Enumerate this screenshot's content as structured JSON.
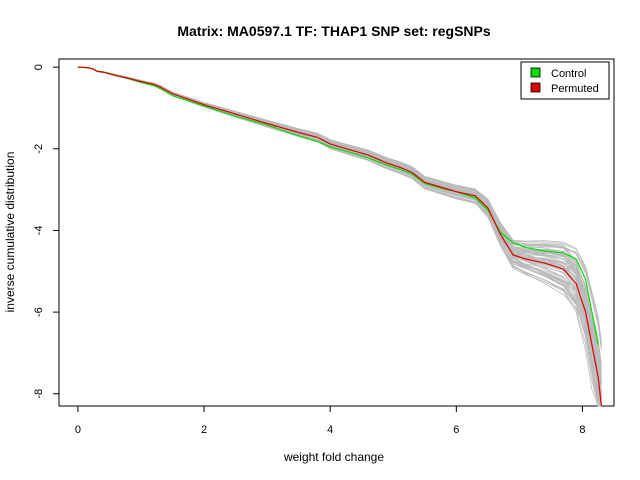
{
  "chart_data": {
    "type": "line",
    "title": "Matrix: MA0597.1 TF: THAP1 SNP set: regSNPs",
    "xlabel": "weight fold change",
    "ylabel": "inverse cumulative distribution",
    "xlim": [
      -0.3,
      8.5
    ],
    "ylim": [
      -8.3,
      0.2
    ],
    "x_ticks": [
      0,
      2,
      4,
      6,
      8
    ],
    "y_ticks": [
      0,
      -2,
      -4,
      -6,
      -8
    ],
    "x_tick_labels": [
      "0",
      "2",
      "4",
      "6",
      "8"
    ],
    "y_tick_labels": [
      "0",
      "-2",
      "-4",
      "-6",
      "-8"
    ],
    "grid": false,
    "legend": {
      "position": "top-right",
      "entries": [
        "Control",
        "Permuted"
      ]
    },
    "series": [
      {
        "name": "Control",
        "color": "#00dd00",
        "x": [
          0.0,
          0.15,
          0.25,
          0.3,
          0.4,
          0.6,
          0.8,
          1.0,
          1.2,
          1.3,
          1.5,
          2.0,
          2.5,
          3.0,
          3.5,
          3.8,
          4.0,
          4.3,
          4.6,
          4.9,
          5.1,
          5.3,
          5.5,
          5.8,
          6.0,
          6.3,
          6.5,
          6.7,
          6.9,
          7.1,
          7.4,
          7.7,
          7.9,
          8.05,
          8.15,
          8.25
        ],
        "y": [
          0.0,
          -0.01,
          -0.05,
          -0.1,
          -0.12,
          -0.2,
          -0.28,
          -0.37,
          -0.45,
          -0.52,
          -0.7,
          -0.95,
          -1.2,
          -1.42,
          -1.68,
          -1.82,
          -1.95,
          -2.08,
          -2.22,
          -2.4,
          -2.5,
          -2.62,
          -2.85,
          -2.98,
          -3.05,
          -3.2,
          -3.5,
          -4.05,
          -4.3,
          -4.42,
          -4.5,
          -4.55,
          -4.7,
          -5.2,
          -6.0,
          -6.8
        ]
      },
      {
        "name": "Permuted",
        "color": "#dd0000",
        "x": [
          0.0,
          0.15,
          0.25,
          0.3,
          0.4,
          0.6,
          0.8,
          1.0,
          1.2,
          1.3,
          1.5,
          2.0,
          2.5,
          3.0,
          3.5,
          3.8,
          4.0,
          4.3,
          4.6,
          4.9,
          5.1,
          5.3,
          5.5,
          5.8,
          6.0,
          6.3,
          6.5,
          6.7,
          6.9,
          7.1,
          7.4,
          7.7,
          7.9,
          8.05,
          8.15,
          8.25,
          8.3
        ],
        "y": [
          0.0,
          -0.01,
          -0.05,
          -0.1,
          -0.12,
          -0.2,
          -0.27,
          -0.35,
          -0.42,
          -0.48,
          -0.65,
          -0.92,
          -1.15,
          -1.38,
          -1.6,
          -1.72,
          -1.88,
          -2.02,
          -2.15,
          -2.35,
          -2.45,
          -2.58,
          -2.82,
          -2.96,
          -3.05,
          -3.15,
          -3.45,
          -4.1,
          -4.6,
          -4.7,
          -4.8,
          -4.95,
          -5.3,
          -6.0,
          -6.8,
          -7.6,
          -8.3
        ]
      }
    ],
    "background_series_color": "#bbbbbb"
  }
}
